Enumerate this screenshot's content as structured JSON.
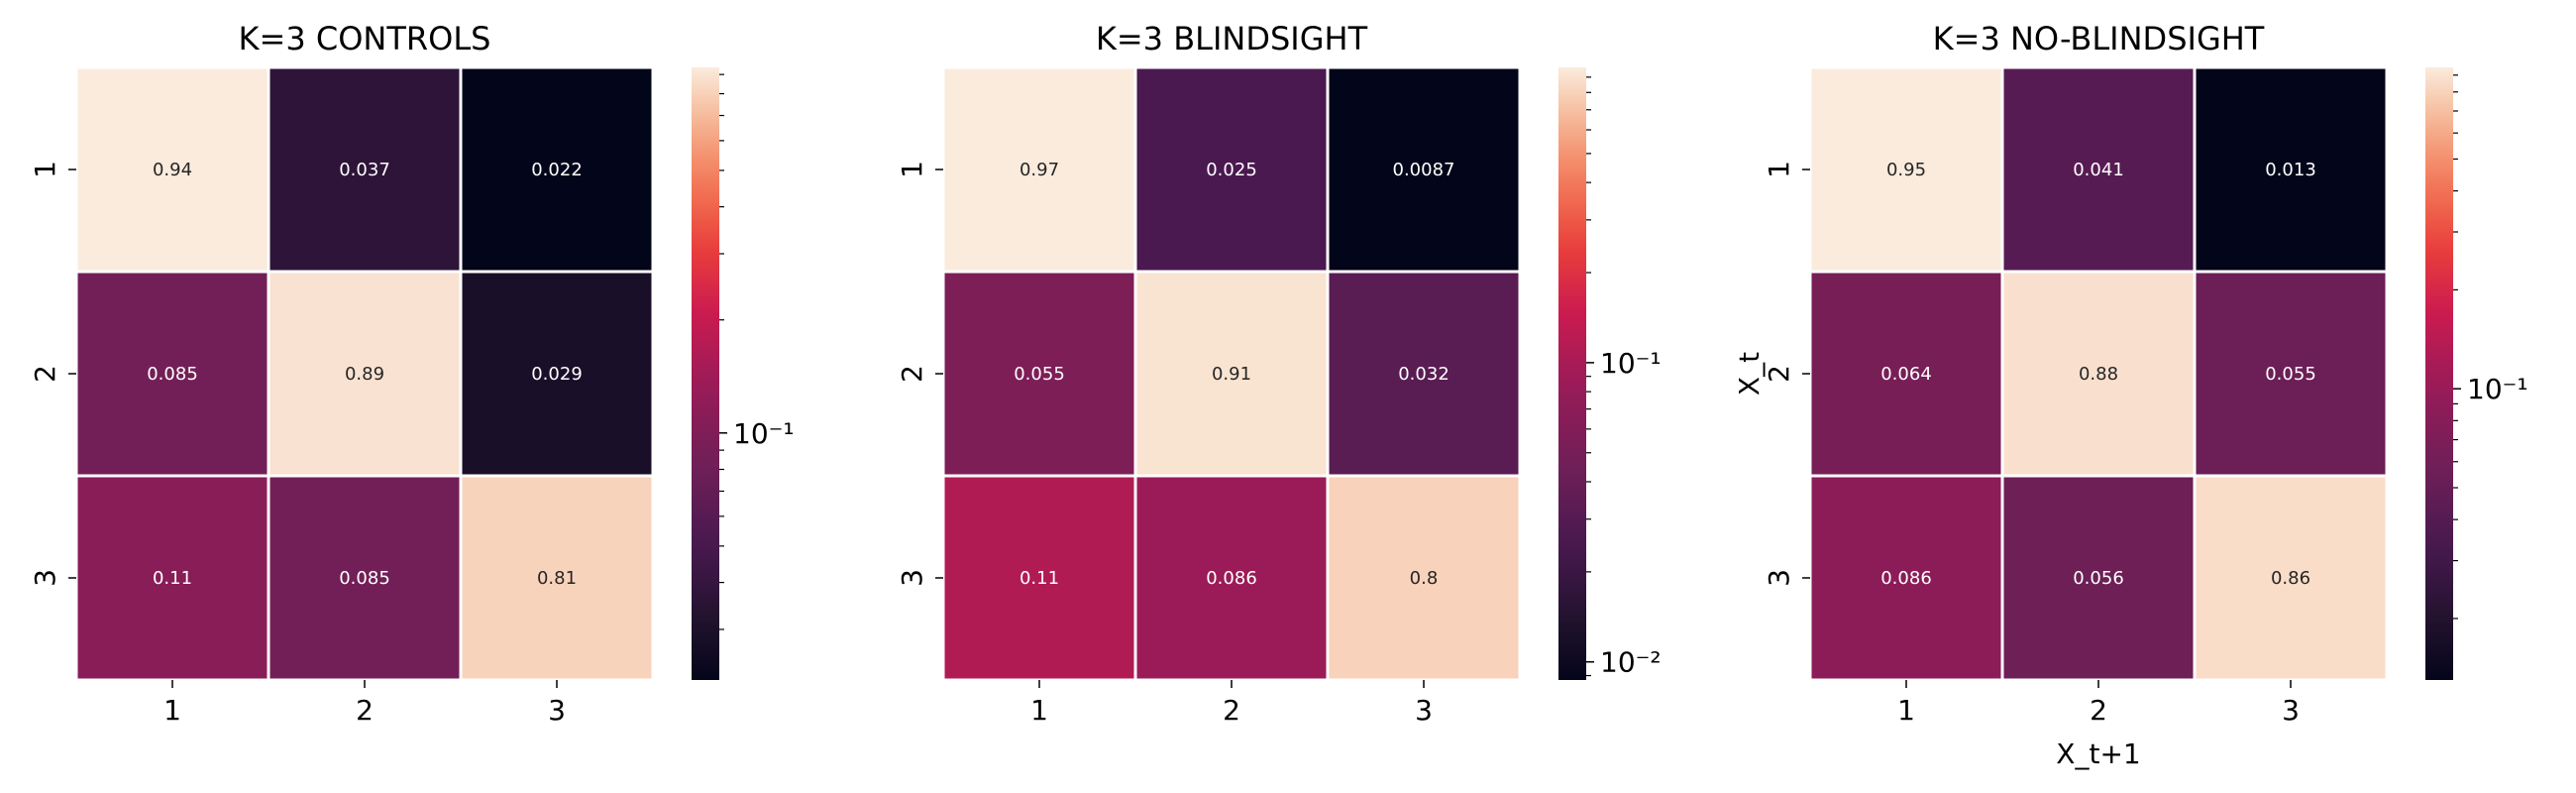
{
  "chart_data": [
    {
      "type": "heatmap",
      "title": "K=3 CONTROLS",
      "xlabel": "",
      "ylabel": "",
      "x_categories": [
        "1",
        "2",
        "3"
      ],
      "y_categories": [
        "1",
        "2",
        "3"
      ],
      "values": [
        [
          0.94,
          0.037,
          0.022
        ],
        [
          0.085,
          0.89,
          0.029
        ],
        [
          0.11,
          0.085,
          0.81
        ]
      ],
      "value_labels": [
        [
          "0.94",
          "0.037",
          "0.022"
        ],
        [
          "0.085",
          "0.89",
          "0.029"
        ],
        [
          "0.11",
          "0.085",
          "0.81"
        ]
      ],
      "color_scale": "log",
      "colormap": "rocket",
      "color_range": [
        0.022,
        0.94
      ],
      "colorbar_ticks": [
        {
          "value": 0.1,
          "label": "10⁻¹"
        }
      ]
    },
    {
      "type": "heatmap",
      "title": "K=3 BLINDSIGHT",
      "xlabel": "",
      "ylabel": "",
      "x_categories": [
        "1",
        "2",
        "3"
      ],
      "y_categories": [
        "1",
        "2",
        "3"
      ],
      "values": [
        [
          0.97,
          0.025,
          0.0087
        ],
        [
          0.055,
          0.91,
          0.032
        ],
        [
          0.11,
          0.086,
          0.8
        ]
      ],
      "value_labels": [
        [
          "0.97",
          "0.025",
          "0.0087"
        ],
        [
          "0.055",
          "0.91",
          "0.032"
        ],
        [
          "0.11",
          "0.086",
          "0.8"
        ]
      ],
      "color_scale": "log",
      "colormap": "rocket",
      "color_range": [
        0.0087,
        0.97
      ],
      "colorbar_ticks": [
        {
          "value": 0.1,
          "label": "10⁻¹"
        },
        {
          "value": 0.01,
          "label": "10⁻²"
        }
      ]
    },
    {
      "type": "heatmap",
      "title": "K=3 NO-BLINDSIGHT",
      "xlabel": "X_t+1",
      "ylabel": "X_t",
      "x_categories": [
        "1",
        "2",
        "3"
      ],
      "y_categories": [
        "1",
        "2",
        "3"
      ],
      "values": [
        [
          0.95,
          0.041,
          0.013
        ],
        [
          0.064,
          0.88,
          0.055
        ],
        [
          0.086,
          0.056,
          0.86
        ]
      ],
      "value_labels": [
        [
          "0.95",
          "0.041",
          "0.013"
        ],
        [
          "0.064",
          "0.88",
          "0.055"
        ],
        [
          "0.086",
          "0.056",
          "0.86"
        ]
      ],
      "color_scale": "log",
      "colormap": "rocket",
      "color_range": [
        0.013,
        0.95
      ],
      "colorbar_ticks": [
        {
          "value": 0.1,
          "label": "10⁻¹"
        }
      ]
    }
  ]
}
